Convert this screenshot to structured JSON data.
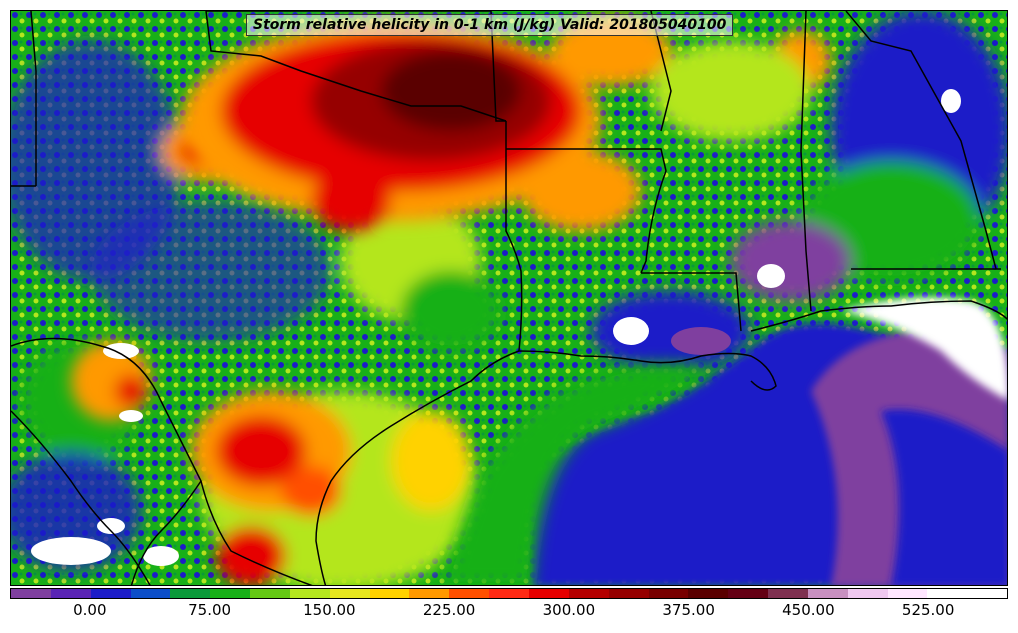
{
  "title": "Storm relative helicity in 0-1 km (J/kg) Valid: 201805040100",
  "colorbar": {
    "min": -50,
    "max": 575,
    "step": 25,
    "colors": [
      "#7f3f9f",
      "#5a24b5",
      "#1c1cc8",
      "#0c4ec8",
      "#0a9a3a",
      "#18b018",
      "#64c814",
      "#b4e61e",
      "#e6e61e",
      "#ffd200",
      "#ff9900",
      "#ff5000",
      "#ff2a14",
      "#e60000",
      "#b40000",
      "#960000",
      "#780000",
      "#5a0000",
      "#640014",
      "#7f3050",
      "#c890c0",
      "#f0c8f0",
      "#ffe6ff",
      "#ffffff",
      "#ffffff"
    ],
    "ticks": [
      "0.00",
      "75.00",
      "150.00",
      "225.00",
      "300.00",
      "375.00",
      "450.00",
      "525.00"
    ],
    "tick_values": [
      0,
      75,
      150,
      225,
      300,
      375,
      450,
      525
    ]
  },
  "colors": {
    "border": "#000000",
    "gulf_blue": "#1c1cc8",
    "purple": "#7f3f9f",
    "green": "#18b018",
    "light_green": "#b4e61e",
    "yellow": "#ffd200",
    "orange": "#ff9900",
    "red": "#e60000",
    "dark_red": "#780000"
  }
}
